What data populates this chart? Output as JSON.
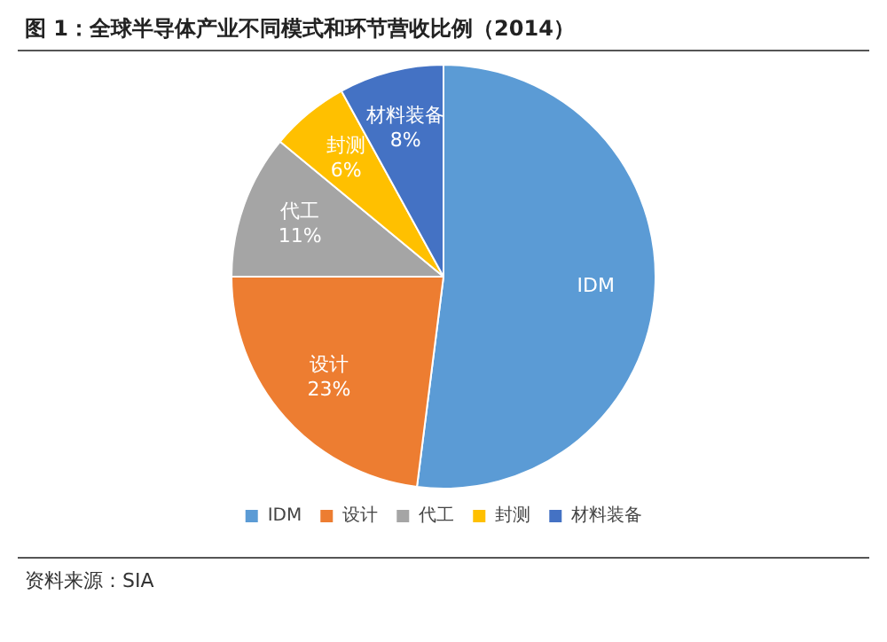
{
  "chart_data": {
    "type": "pie",
    "title": "图 1：全球半导体产业不同模式和环节营收比例（2014）",
    "categories": [
      "IDM",
      "设计",
      "代工",
      "封测",
      "材料装备"
    ],
    "values": [
      52,
      23,
      11,
      6,
      8
    ],
    "colors": [
      "#5b9bd5",
      "#ed7d31",
      "#a5a5a5",
      "#ffc000",
      "#4472c4"
    ],
    "value_labels": [
      null,
      "23%",
      "11%",
      "6%",
      "8%"
    ],
    "legend": "bottom",
    "annotations": [
      "资料来源：SIA"
    ]
  }
}
